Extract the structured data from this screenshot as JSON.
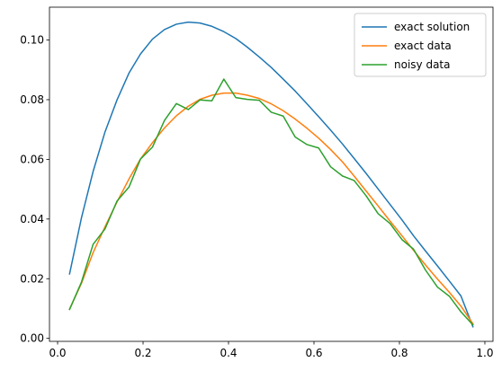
{
  "chart_data": {
    "type": "line",
    "title": "",
    "xlabel": "",
    "ylabel": "",
    "xlim": [
      -0.019,
      1.019
    ],
    "ylim": [
      -0.001,
      0.111
    ],
    "x_ticks": [
      0.0,
      0.2,
      0.4,
      0.6,
      0.8,
      1.0
    ],
    "x_tick_labels": [
      "0.0",
      "0.2",
      "0.4",
      "0.6",
      "0.8",
      "1.0"
    ],
    "y_ticks": [
      0.0,
      0.02,
      0.04,
      0.06,
      0.08,
      0.1
    ],
    "y_tick_labels": [
      "0.00",
      "0.02",
      "0.04",
      "0.06",
      "0.08",
      "0.10"
    ],
    "grid": false,
    "legend_position": "top-right",
    "series": [
      {
        "name": "exact solution",
        "color": "#1f77b4",
        "x": [
          0.028,
          0.056,
          0.083,
          0.111,
          0.139,
          0.167,
          0.194,
          0.222,
          0.25,
          0.278,
          0.306,
          0.333,
          0.361,
          0.389,
          0.417,
          0.444,
          0.472,
          0.5,
          0.528,
          0.556,
          0.583,
          0.611,
          0.639,
          0.667,
          0.694,
          0.722,
          0.75,
          0.778,
          0.806,
          0.833,
          0.861,
          0.889,
          0.917,
          0.944,
          0.972
        ],
        "y": [
          0.0216,
          0.0405,
          0.0559,
          0.0692,
          0.0799,
          0.0889,
          0.0953,
          0.1003,
          0.1035,
          0.1053,
          0.106,
          0.1057,
          0.1046,
          0.1028,
          0.1005,
          0.0976,
          0.0943,
          0.0908,
          0.0869,
          0.0829,
          0.0787,
          0.0743,
          0.0698,
          0.0651,
          0.0603,
          0.0553,
          0.0501,
          0.0449,
          0.0397,
          0.0344,
          0.0293,
          0.0243,
          0.0192,
          0.0142,
          0.0039
        ]
      },
      {
        "name": "exact data",
        "color": "#ff7f0e",
        "x": [
          0.028,
          0.056,
          0.083,
          0.111,
          0.139,
          0.167,
          0.194,
          0.222,
          0.25,
          0.278,
          0.306,
          0.333,
          0.361,
          0.389,
          0.417,
          0.444,
          0.472,
          0.5,
          0.528,
          0.556,
          0.583,
          0.611,
          0.639,
          0.667,
          0.694,
          0.722,
          0.75,
          0.778,
          0.806,
          0.833,
          0.861,
          0.889,
          0.917,
          0.944,
          0.972
        ],
        "y": [
          0.0098,
          0.0185,
          0.0287,
          0.0374,
          0.0457,
          0.0534,
          0.0601,
          0.0656,
          0.0705,
          0.0746,
          0.0778,
          0.0801,
          0.0815,
          0.0822,
          0.0822,
          0.0815,
          0.0804,
          0.0786,
          0.0763,
          0.0735,
          0.0705,
          0.0671,
          0.0633,
          0.0591,
          0.0544,
          0.0494,
          0.0444,
          0.0393,
          0.0344,
          0.0295,
          0.0246,
          0.0199,
          0.0154,
          0.0108,
          0.0049
        ]
      },
      {
        "name": "noisy data",
        "color": "#2ca02c",
        "x": [
          0.028,
          0.056,
          0.083,
          0.111,
          0.139,
          0.167,
          0.194,
          0.222,
          0.25,
          0.278,
          0.306,
          0.333,
          0.361,
          0.389,
          0.417,
          0.444,
          0.472,
          0.5,
          0.528,
          0.556,
          0.583,
          0.611,
          0.639,
          0.667,
          0.694,
          0.722,
          0.75,
          0.778,
          0.806,
          0.833,
          0.861,
          0.889,
          0.917,
          0.944,
          0.972
        ],
        "y": [
          0.0097,
          0.0189,
          0.0315,
          0.0367,
          0.046,
          0.0507,
          0.0601,
          0.0641,
          0.073,
          0.0787,
          0.0767,
          0.0799,
          0.0796,
          0.0869,
          0.0807,
          0.0801,
          0.0798,
          0.0758,
          0.0745,
          0.0675,
          0.065,
          0.0638,
          0.0575,
          0.0544,
          0.0529,
          0.0478,
          0.0418,
          0.0385,
          0.0331,
          0.0299,
          0.0229,
          0.0172,
          0.0141,
          0.0089,
          0.0045
        ]
      }
    ]
  }
}
